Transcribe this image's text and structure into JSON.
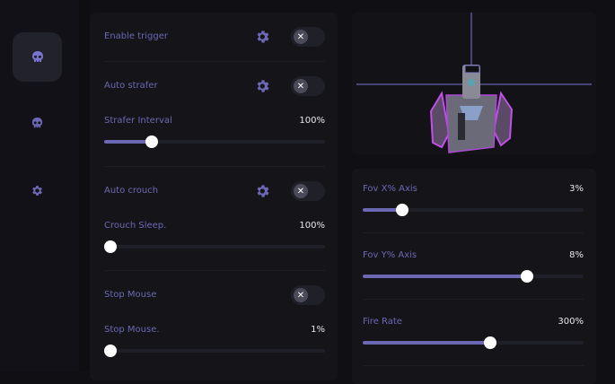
{
  "colors": {
    "accent": "#6d68b4",
    "background": "#0f0f14",
    "panel": "#141419"
  },
  "sidebar": {
    "items": [
      {
        "icon": "skull-icon",
        "active": true
      },
      {
        "icon": "skull-icon",
        "active": false
      },
      {
        "icon": "gear-icon",
        "active": false
      }
    ]
  },
  "left_panel": {
    "enable_trigger": {
      "label": "Enable trigger",
      "enabled": false
    },
    "auto_strafer": {
      "label": "Auto strafer",
      "enabled": false
    },
    "strafer_interval": {
      "label": "Strafer Interval",
      "value": "100%",
      "fill": 20
    },
    "auto_crouch": {
      "label": "Auto crouch",
      "enabled": false
    },
    "crouch_sleep": {
      "label": "Crouch Sleep.",
      "value": "100%",
      "fill": 0
    },
    "stop_mouse": {
      "label": "Stop Mouse",
      "enabled": false
    },
    "stop_mouse_slider": {
      "label": "Stop Mouse.",
      "value": "1%",
      "fill": 0
    }
  },
  "right_panel": {
    "fov_x": {
      "label": "Fov X% Axis",
      "value": "3%",
      "fill": 16
    },
    "fov_y": {
      "label": "Fov Y% Axis",
      "value": "8%",
      "fill": 76
    },
    "fire_rate": {
      "label": "Fire Rate",
      "value": "300%",
      "fill": 58
    }
  },
  "toggle_off_glyph": "✕"
}
